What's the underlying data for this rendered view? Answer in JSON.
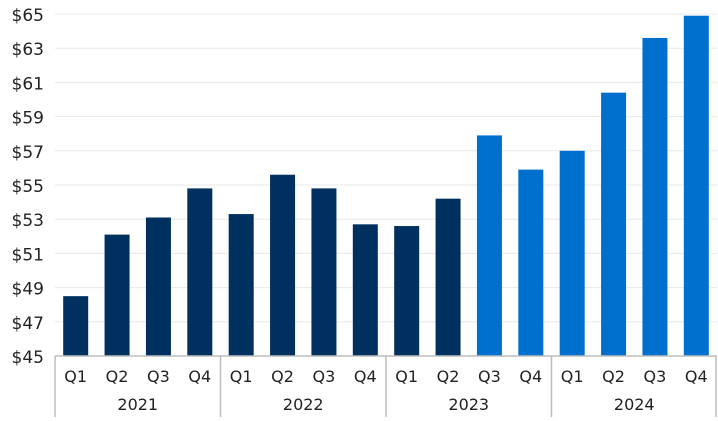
{
  "chart_data": {
    "type": "bar",
    "title": "",
    "xlabel": "",
    "ylabel": "",
    "ylim": [
      45,
      65
    ],
    "yticks": [
      "$45",
      "$47",
      "$49",
      "$51",
      "$53",
      "$55",
      "$57",
      "$59",
      "$61",
      "$63",
      "$65"
    ],
    "ytick_values": [
      45,
      47,
      49,
      51,
      53,
      55,
      57,
      59,
      61,
      63,
      65
    ],
    "grid": true,
    "groups": [
      {
        "label": "2021",
        "categories": [
          "Q1",
          "Q2",
          "Q3",
          "Q4"
        ]
      },
      {
        "label": "2022",
        "categories": [
          "Q1",
          "Q2",
          "Q3",
          "Q4"
        ]
      },
      {
        "label": "2023",
        "categories": [
          "Q1",
          "Q2",
          "Q3",
          "Q4"
        ]
      },
      {
        "label": "2024",
        "categories": [
          "Q1",
          "Q2",
          "Q3",
          "Q4"
        ]
      }
    ],
    "values": [
      48.5,
      52.1,
      53.1,
      54.8,
      53.3,
      55.6,
      54.8,
      52.7,
      52.6,
      54.2,
      57.9,
      55.9,
      57.0,
      60.4,
      63.6,
      64.9
    ],
    "series_kind": [
      "actual",
      "actual",
      "actual",
      "actual",
      "actual",
      "actual",
      "actual",
      "actual",
      "actual",
      "actual",
      "estimate",
      "estimate",
      "estimate",
      "estimate",
      "estimate",
      "estimate"
    ],
    "colors": {
      "actual": "#00305f",
      "estimate": "#0070cf",
      "grid": "#e8e8e8",
      "axis": "#bdbdbd"
    }
  }
}
